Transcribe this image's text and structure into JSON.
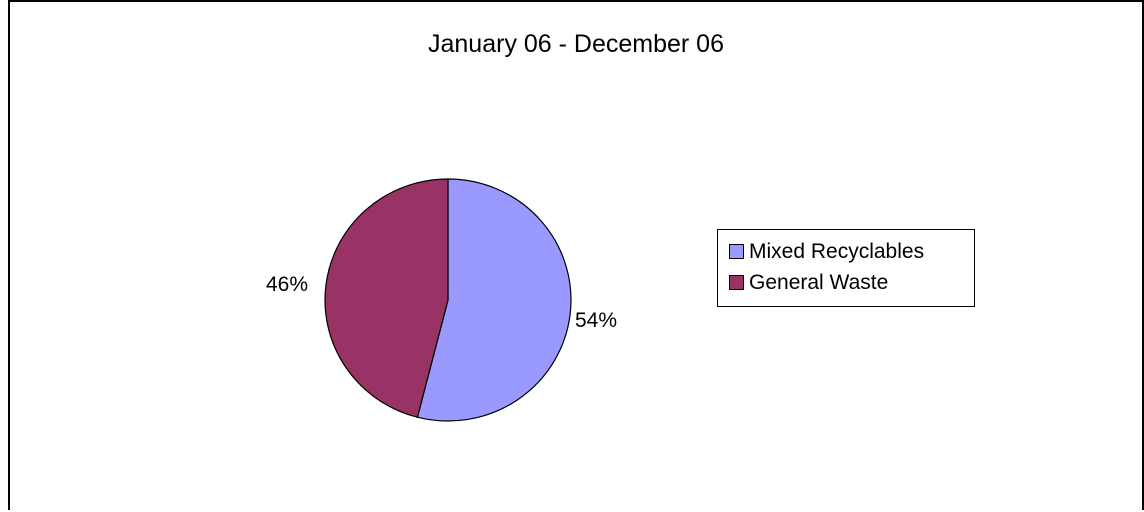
{
  "chart_data": {
    "type": "pie",
    "title": "January 06 - December 06",
    "slices": [
      {
        "label": "Mixed Recyclables",
        "value": 54,
        "value_label": "54%",
        "color": "#9999ff"
      },
      {
        "label": "General Waste",
        "value": 46,
        "value_label": "46%",
        "color": "#993366"
      }
    ],
    "legend_position": "right"
  }
}
